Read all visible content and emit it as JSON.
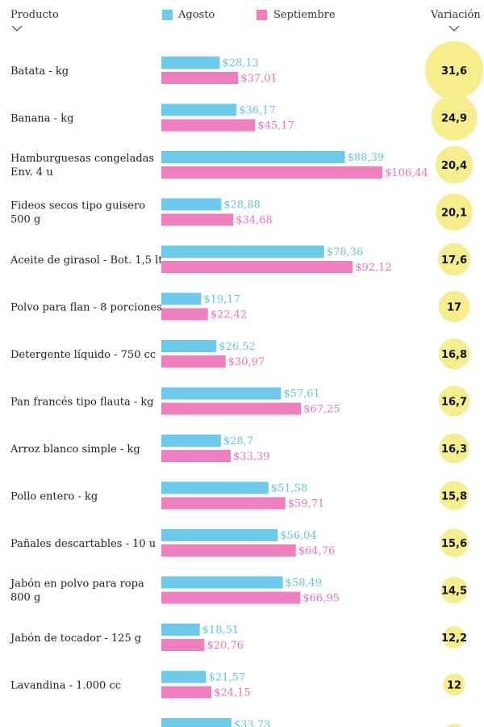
{
  "header": {
    "product": "Producto",
    "variation": "Variación"
  },
  "colors": {
    "agosto": "#6ccbeb",
    "septiembre": "#f07fc0",
    "agosto_text": "#5fc7d8",
    "septiembre_text": "#e874b6",
    "circle": "#f6ee8c"
  },
  "chart_data": {
    "type": "bar",
    "orientation": "horizontal",
    "legend": "top",
    "legend_entries": [
      "Agosto",
      "Septiembre"
    ],
    "categories": [
      "Batata - kg",
      "Banana - kg",
      "Hamburguesas congeladas\nEnv. 4 u",
      "Fideos secos tipo guisero\n500 g",
      "Aceite de girasol - Bot. 1,5 lt.",
      "Polvo para flan - 8 porciones",
      "Detergente líquido - 750 cc",
      "Pan francés tipo flauta - kg",
      "Arroz blanco simple - kg",
      "Pollo entero - kg",
      "Pañales descartables - 10 u",
      "Jabón en polvo para ropa\n800 g",
      "Jabón de tocador - 125 g",
      "Lavandina - 1.000 cc",
      ""
    ],
    "series": [
      {
        "name": "Agosto",
        "values": [
          28.13,
          36.17,
          88.39,
          28.88,
          78.36,
          19.17,
          26.52,
          57.61,
          28.7,
          51.58,
          56.04,
          58.49,
          18.51,
          21.57,
          33.73
        ],
        "labels": [
          "$28,13",
          "$36,17",
          "$88,39",
          "$28,88",
          "$78,36",
          "$19,17",
          "$26,52",
          "$57,61",
          "$28,7",
          "$51,58",
          "$56,04",
          "$58,49",
          "$18,51",
          "$21,57",
          "$33,73"
        ]
      },
      {
        "name": "Septiembre",
        "values": [
          37.01,
          45.17,
          106.44,
          34.68,
          92.12,
          22.42,
          30.97,
          67.25,
          33.39,
          59.71,
          64.76,
          66.95,
          20.76,
          24.15,
          null
        ],
        "labels": [
          "$37,01",
          "$45,17",
          "$106,44",
          "$34,68",
          "$92,12",
          "$22,42",
          "$30,97",
          "$67,25",
          "$33,39",
          "$59,71",
          "$64,76",
          "$66,95",
          "$20,76",
          "$24,15",
          ""
        ]
      }
    ],
    "variation": [
      31.6,
      24.9,
      20.4,
      20.1,
      17.6,
      17,
      16.8,
      16.7,
      16.3,
      15.8,
      15.6,
      14.5,
      12.2,
      12,
      null
    ],
    "variation_labels": [
      "31,6",
      "24,9",
      "20,4",
      "20,1",
      "17,6",
      "17",
      "16,8",
      "16,7",
      "16,3",
      "15,8",
      "15,6",
      "14,5",
      "12,2",
      "12",
      ""
    ]
  }
}
